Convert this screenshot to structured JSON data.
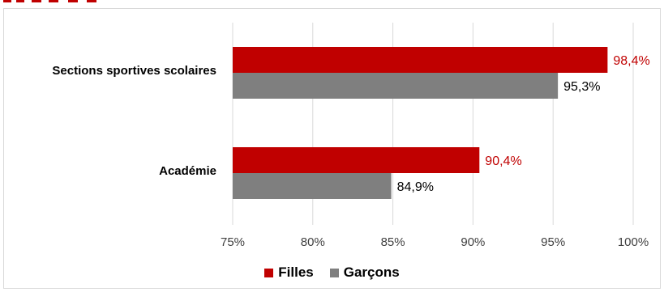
{
  "chart_data": {
    "type": "bar",
    "orientation": "horizontal",
    "categories": [
      "Sections sportives scolaires",
      "Académie"
    ],
    "series": [
      {
        "name": "Filles",
        "values": [
          98.4,
          90.4
        ],
        "labels": [
          "98,4%",
          "90,4%"
        ],
        "color": "#c00000"
      },
      {
        "name": "Garçons",
        "values": [
          95.3,
          84.9
        ],
        "labels": [
          "95,3%",
          "84,9%"
        ],
        "color": "#7f7f7f"
      }
    ],
    "xlim": [
      75,
      100
    ],
    "xticks": [
      75,
      80,
      85,
      90,
      95,
      100
    ],
    "xtick_labels": [
      "75%",
      "80%",
      "85%",
      "90%",
      "95%",
      "100%"
    ],
    "grid": true,
    "legend_position": "bottom"
  }
}
